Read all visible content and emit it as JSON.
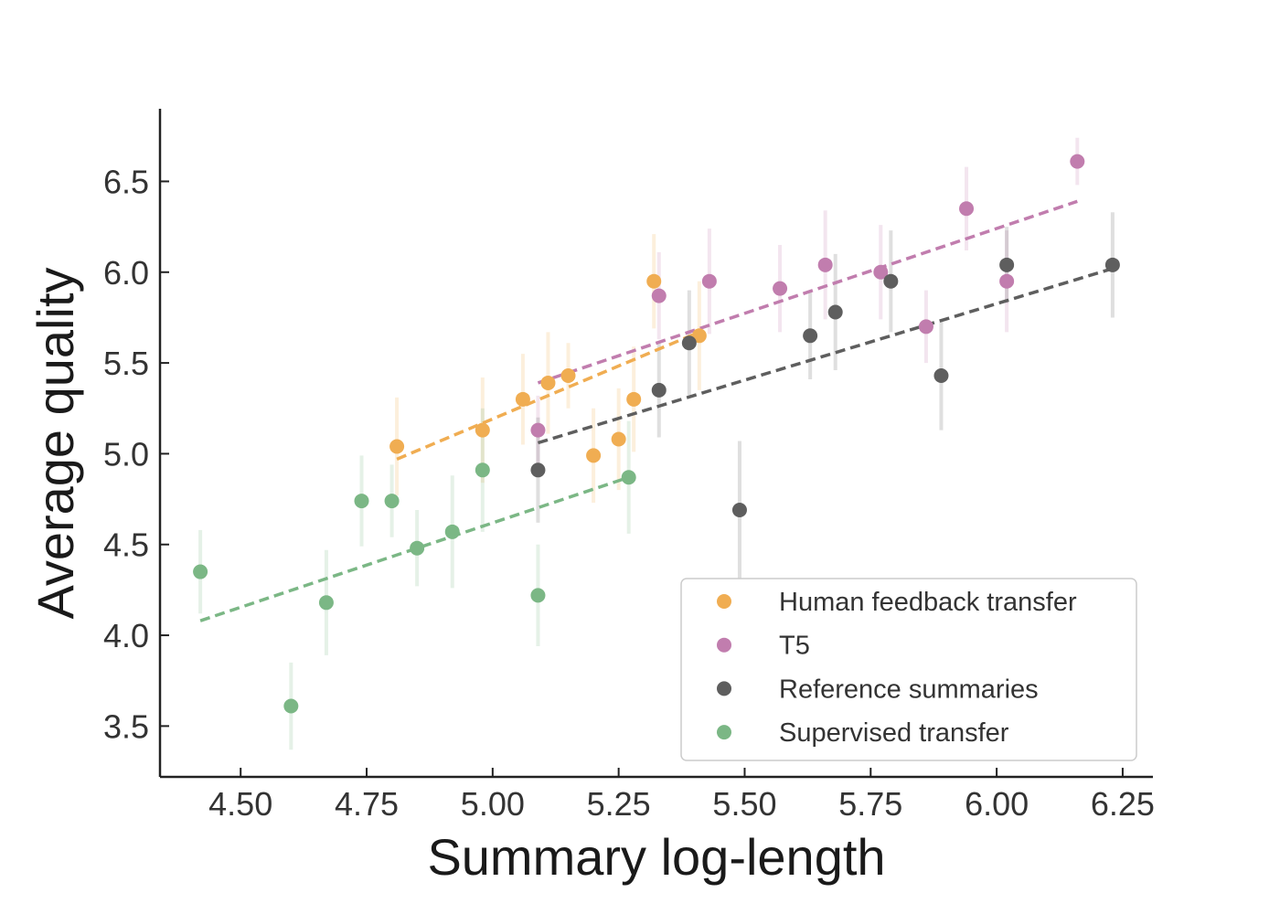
{
  "chart_data": {
    "type": "scatter",
    "title": "",
    "xlabel": "Summary log-length",
    "ylabel": "Average quality",
    "xlim": [
      4.34,
      6.31
    ],
    "ylim": [
      3.22,
      6.9
    ],
    "xticks": [
      4.5,
      4.75,
      5.0,
      5.25,
      5.5,
      5.75,
      6.0,
      6.25
    ],
    "xtick_labels": [
      "4.50",
      "4.75",
      "5.00",
      "5.25",
      "5.50",
      "5.75",
      "6.00",
      "6.25"
    ],
    "yticks": [
      3.5,
      4.0,
      4.5,
      5.0,
      5.5,
      6.0,
      6.5
    ],
    "ytick_labels": [
      "3.5",
      "4.0",
      "4.5",
      "5.0",
      "5.5",
      "6.0",
      "6.5"
    ],
    "grid": false,
    "legend_position": "bottom-right",
    "series": [
      {
        "name": "Human feedback transfer",
        "color": "#f0ad52",
        "points": [
          {
            "x": 4.81,
            "y": 5.04,
            "err": 0.27
          },
          {
            "x": 4.98,
            "y": 5.13,
            "err": 0.29
          },
          {
            "x": 5.06,
            "y": 5.3,
            "err": 0.25
          },
          {
            "x": 5.11,
            "y": 5.39,
            "err": 0.28
          },
          {
            "x": 5.15,
            "y": 5.43,
            "err": 0.18
          },
          {
            "x": 5.2,
            "y": 4.99,
            "err": 0.26
          },
          {
            "x": 5.25,
            "y": 5.08,
            "err": 0.28
          },
          {
            "x": 5.28,
            "y": 5.3,
            "err": 0.29
          },
          {
            "x": 5.32,
            "y": 5.95,
            "err": 0.26
          },
          {
            "x": 5.41,
            "y": 5.65,
            "err": 0.3
          }
        ],
        "trend": {
          "x": [
            4.81,
            5.41
          ],
          "y": [
            4.97,
            5.67
          ]
        }
      },
      {
        "name": "T5",
        "color": "#c17dae",
        "points": [
          {
            "x": 5.09,
            "y": 5.13,
            "err": 0.19
          },
          {
            "x": 5.33,
            "y": 5.87,
            "err": 0.24
          },
          {
            "x": 5.43,
            "y": 5.95,
            "err": 0.29
          },
          {
            "x": 5.57,
            "y": 5.91,
            "err": 0.24
          },
          {
            "x": 5.66,
            "y": 6.04,
            "err": 0.3
          },
          {
            "x": 5.77,
            "y": 6.0,
            "err": 0.26
          },
          {
            "x": 5.86,
            "y": 5.7,
            "err": 0.2
          },
          {
            "x": 5.94,
            "y": 6.35,
            "err": 0.23
          },
          {
            "x": 6.02,
            "y": 5.95,
            "err": 0.28
          },
          {
            "x": 6.16,
            "y": 6.61,
            "err": 0.13
          }
        ],
        "trend": {
          "x": [
            5.09,
            6.16
          ],
          "y": [
            5.39,
            6.39
          ]
        }
      },
      {
        "name": "Reference summaries",
        "color": "#5e5e5e",
        "points": [
          {
            "x": 5.09,
            "y": 4.91,
            "err": 0.29
          },
          {
            "x": 5.33,
            "y": 5.35,
            "err": 0.26
          },
          {
            "x": 5.39,
            "y": 5.61,
            "err": 0.29
          },
          {
            "x": 5.49,
            "y": 4.69,
            "err": 0.38
          },
          {
            "x": 5.63,
            "y": 5.65,
            "err": 0.24
          },
          {
            "x": 5.68,
            "y": 5.78,
            "err": 0.32
          },
          {
            "x": 5.79,
            "y": 5.95,
            "err": 0.28
          },
          {
            "x": 5.89,
            "y": 5.43,
            "err": 0.3
          },
          {
            "x": 6.02,
            "y": 6.04,
            "err": 0.21
          },
          {
            "x": 6.23,
            "y": 6.04,
            "err": 0.29
          }
        ],
        "trend": {
          "x": [
            5.09,
            6.23
          ],
          "y": [
            5.06,
            6.02
          ]
        }
      },
      {
        "name": "Supervised transfer",
        "color": "#7bb785",
        "points": [
          {
            "x": 4.42,
            "y": 4.35,
            "err": 0.23
          },
          {
            "x": 4.6,
            "y": 3.61,
            "err": 0.24
          },
          {
            "x": 4.67,
            "y": 4.18,
            "err": 0.29
          },
          {
            "x": 4.74,
            "y": 4.74,
            "err": 0.25
          },
          {
            "x": 4.8,
            "y": 4.74,
            "err": 0.2
          },
          {
            "x": 4.85,
            "y": 4.48,
            "err": 0.21
          },
          {
            "x": 4.92,
            "y": 4.57,
            "err": 0.31
          },
          {
            "x": 4.98,
            "y": 4.91,
            "err": 0.34
          },
          {
            "x": 5.09,
            "y": 4.22,
            "err": 0.28
          },
          {
            "x": 5.27,
            "y": 4.87,
            "err": 0.31
          }
        ],
        "trend": {
          "x": [
            4.42,
            5.27
          ],
          "y": [
            4.08,
            4.87
          ]
        }
      }
    ]
  }
}
